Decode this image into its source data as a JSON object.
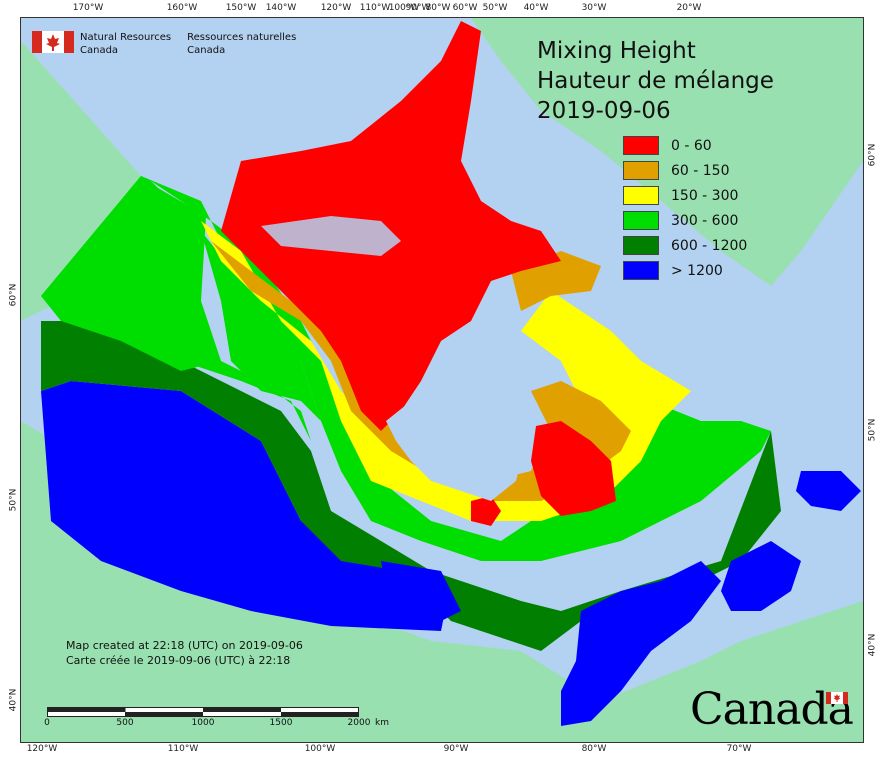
{
  "title": {
    "line1": "Mixing Height",
    "line2": "Hauteur de mélange",
    "line3": "2019-09-06"
  },
  "logo": {
    "name_en_1": "Natural Resources",
    "name_en_2": "Canada",
    "name_fr_1": "Ressources naturelles",
    "name_fr_2": "Canada"
  },
  "legend": [
    {
      "label": "0 - 60",
      "color": "#ff0000"
    },
    {
      "label": "60 - 150",
      "color": "#e0a000"
    },
    {
      "label": "150 - 300",
      "color": "#ffff00"
    },
    {
      "label": "300 - 600",
      "color": "#00dd00"
    },
    {
      "label": "600 - 1200",
      "color": "#007f00"
    },
    {
      "label": "> 1200",
      "color": "#0000ff"
    }
  ],
  "credit": {
    "line_en": "Map created at 22:18 (UTC) on 2019-09-06",
    "line_fr": "Carte créée le 2019-09-06 (UTC) à 22:18"
  },
  "scale": {
    "labels": [
      "0",
      "500",
      "1000",
      "1500",
      "2000"
    ],
    "unit": "km"
  },
  "wordmark": "Canada",
  "top_ticks": [
    "170°W",
    "160°W",
    "150°W",
    "140°W",
    "120°W",
    "110°W",
    "100°W",
    "90°W",
    "80°W",
    "60°W",
    "50°W",
    "40°W",
    "30°W",
    "20°W"
  ],
  "bottom_ticks": [
    "120°W",
    "110°W",
    "100°W",
    "90°W",
    "80°W",
    "70°W"
  ],
  "left_ticks": [
    "60°N",
    "50°N",
    "40°N"
  ],
  "right_ticks": [
    "60°N",
    "50°N",
    "40°N"
  ],
  "colors": {
    "water": "#b3d1f0",
    "land_other": "#99e0b0",
    "frame": "#333333"
  }
}
